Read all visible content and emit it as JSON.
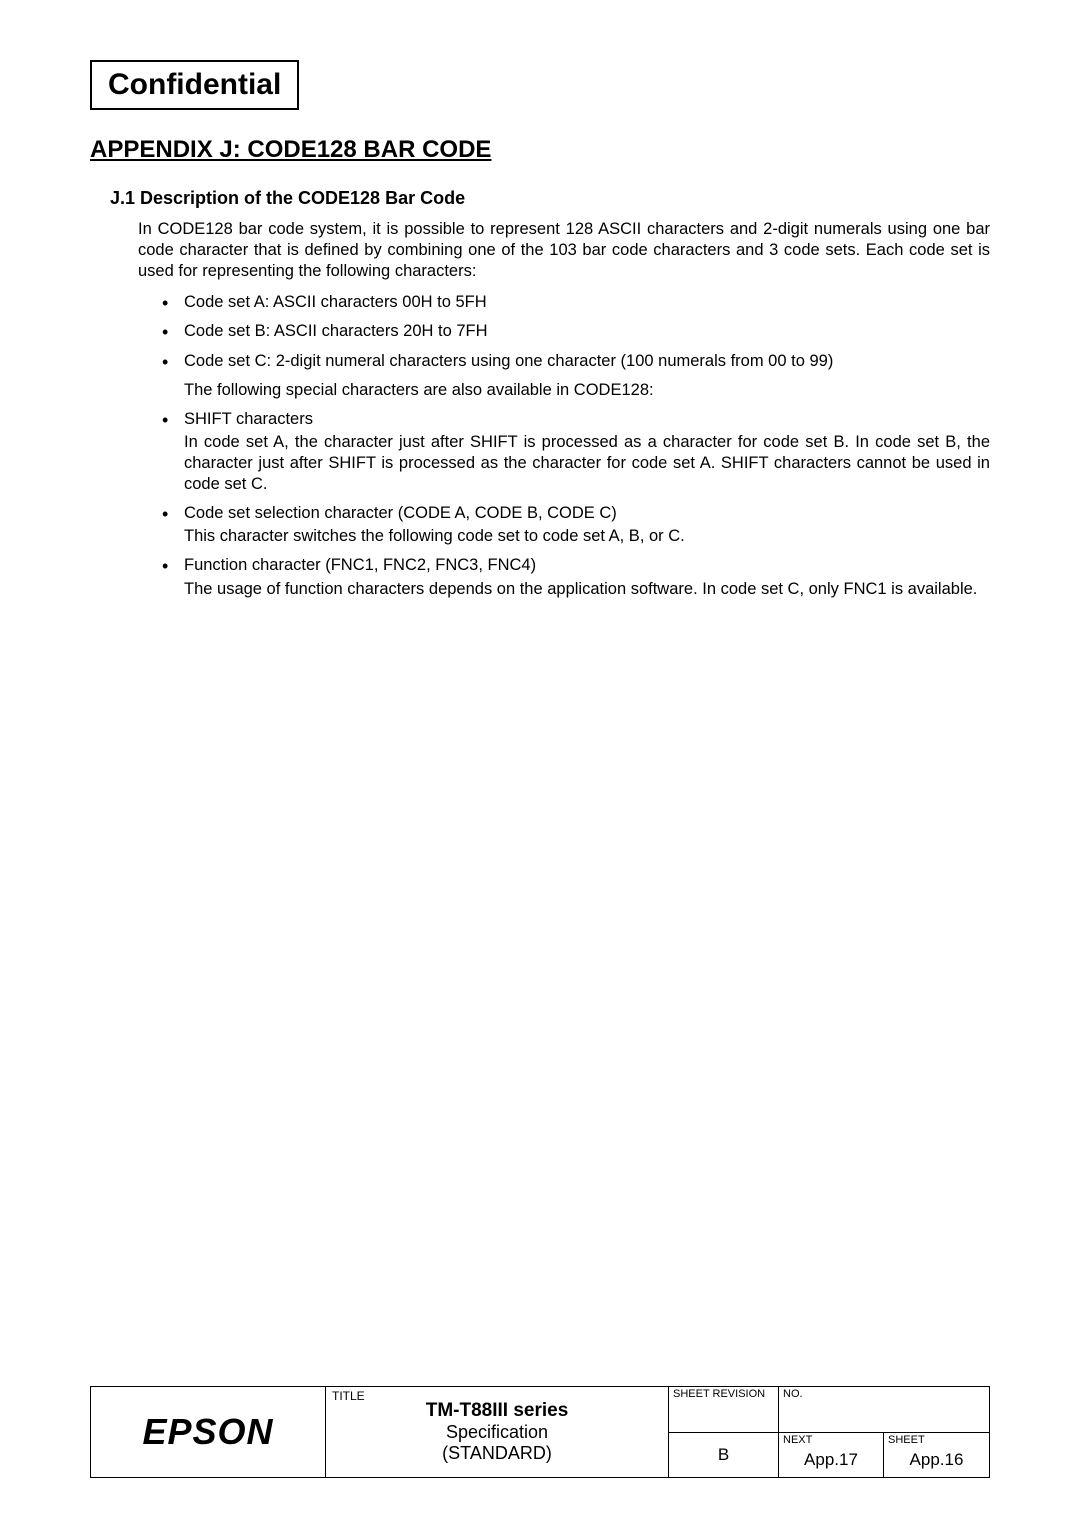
{
  "header": {
    "confidential": "Confidential"
  },
  "appendix": {
    "title": "APPENDIX J: CODE128 BAR CODE",
    "section_heading": "J.1 Description of the CODE128 Bar Code",
    "intro": "In CODE128 bar code system, it is possible to represent 128 ASCII characters and 2-digit numerals using one bar code character that is defined by combining one of the 103 bar code characters and 3 code sets.   Each code set is used for representing the following characters:",
    "set_a": "Code set A:   ASCII characters 00H to 5FH",
    "set_b": "Code set B:   ASCII characters 20H to 7FH",
    "set_c": "Code set C:   2-digit numeral characters using one character (100 numerals from 00 to 99)",
    "sub_special": "The following special characters are also available in CODE128:",
    "shift_head": "SHIFT characters",
    "shift_body": "In code set A, the character just after SHIFT is processed as a character for code set B. In code set B, the character just after SHIFT is processed as the character for code set A.  SHIFT characters cannot be used in code set C.",
    "codesel_head": "Code set selection character (CODE A, CODE B, CODE C)",
    "codesel_body": "This character switches the following code set to code set A, B, or C.",
    "fnc_head": "Function character (FNC1, FNC2, FNC3, FNC4)",
    "fnc_body": "The usage of function characters depends on the application software.   In code set C, only FNC1 is available."
  },
  "titleblock": {
    "logo": "EPSON",
    "title_label": "TITLE",
    "title_line1": "TM-T88III series",
    "title_line2": "Specification",
    "title_line3": "(STANDARD)",
    "sheet_rev_label": "SHEET REVISION",
    "no_label": "NO.",
    "revision_value": "B",
    "next_label": "NEXT",
    "next_value": "App.17",
    "sheet_label": "SHEET",
    "sheet_value": "App.16"
  }
}
